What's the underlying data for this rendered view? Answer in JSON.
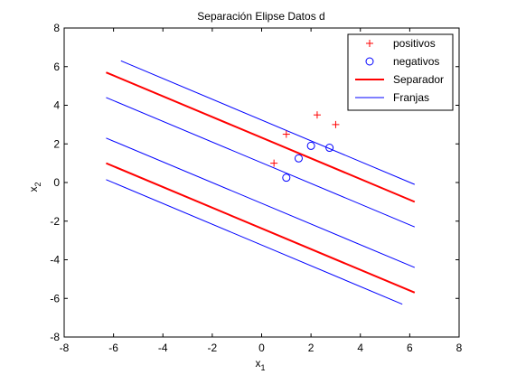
{
  "chart_data": {
    "type": "line",
    "title": "Separación Elipse Datos d",
    "xlabel": "x",
    "xlabel_sub": "1",
    "ylabel": "x",
    "ylabel_sub": "2",
    "xlim": [
      -8,
      8
    ],
    "ylim": [
      -8,
      8
    ],
    "xticks": [
      -8,
      -6,
      -4,
      -2,
      0,
      2,
      4,
      6,
      8
    ],
    "yticks": [
      -8,
      -6,
      -4,
      -2,
      0,
      2,
      4,
      6,
      8
    ],
    "grid": false,
    "legend_position": "top-right",
    "colors": {
      "positivos": "#ff0000",
      "negativos": "#0000ff",
      "separador": "#ff0000",
      "franjas": "#0000ff",
      "axes": "#000000"
    },
    "legend": [
      {
        "label": "positivos",
        "marker": "plus",
        "color": "#ff0000"
      },
      {
        "label": "negativos",
        "marker": "circle",
        "color": "#0000ff"
      },
      {
        "label": "Separador",
        "marker": "line-thick",
        "color": "#ff0000"
      },
      {
        "label": "Franjas",
        "marker": "line-thin",
        "color": "#0000ff"
      }
    ],
    "series": [
      {
        "name": "positivos",
        "kind": "scatter",
        "marker": "plus",
        "color": "#ff0000",
        "points": [
          [
            0.5,
            1.0
          ],
          [
            1.0,
            2.5
          ],
          [
            2.25,
            3.5
          ],
          [
            3.0,
            3.0
          ]
        ]
      },
      {
        "name": "negativos",
        "kind": "scatter",
        "marker": "circle",
        "color": "#0000ff",
        "points": [
          [
            1.0,
            0.25
          ],
          [
            1.5,
            1.25
          ],
          [
            2.0,
            1.9
          ],
          [
            2.75,
            1.8
          ]
        ]
      },
      {
        "name": "Separador",
        "kind": "line",
        "color": "#ff0000",
        "width": 2,
        "lines": [
          [
            [
              -6.3,
              5.7
            ],
            [
              6.2,
              -1.0
            ]
          ],
          [
            [
              -6.3,
              1.0
            ],
            [
              6.2,
              -5.7
            ]
          ]
        ]
      },
      {
        "name": "Franjas",
        "kind": "line",
        "color": "#0000ff",
        "width": 1,
        "lines": [
          [
            [
              -5.7,
              6.3
            ],
            [
              6.2,
              -0.1
            ]
          ],
          [
            [
              -6.3,
              4.4
            ],
            [
              6.2,
              -2.3
            ]
          ],
          [
            [
              -6.3,
              2.3
            ],
            [
              6.2,
              -4.4
            ]
          ],
          [
            [
              -6.3,
              0.15
            ],
            [
              5.7,
              -6.3
            ]
          ]
        ]
      }
    ]
  }
}
